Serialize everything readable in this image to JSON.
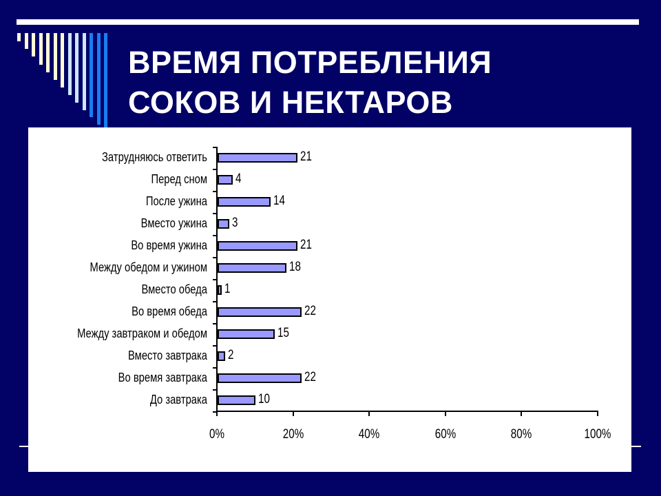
{
  "slide": {
    "title_line1": "ВРЕМЯ ПОТРЕБЛЕНИЯ",
    "title_line2": "СОКОВ И НЕКТАРОВ",
    "colors": {
      "background": "#020266",
      "title": "#ffffff",
      "bar_fill": "#9999ff",
      "bar_border": "#000000",
      "stripes_cream": "#fffbd6",
      "stripes_light_blue": "#cfe6ff",
      "stripes_blue": "#1a7df0"
    }
  },
  "chart_data": {
    "type": "bar",
    "orientation": "horizontal",
    "title": "ВРЕМЯ ПОТРЕБЛЕНИЯ СОКОВ И НЕКТАРОВ",
    "categories": [
      "Затрудняюсь ответить",
      "Перед сном",
      "После ужина",
      "Вместо ужина",
      "Во время ужина",
      "Между обедом и ужином",
      "Вместо обеда",
      "Во время обеда",
      "Между завтраком и обедом",
      "Вместо завтрака",
      "Во время завтрака",
      "До завтрака"
    ],
    "values": [
      21,
      4,
      14,
      3,
      21,
      18,
      1,
      22,
      15,
      2,
      22,
      10
    ],
    "value_labels": [
      "21",
      "4",
      "14",
      "3",
      "21",
      "18",
      "1",
      "22",
      "15",
      "2",
      "22",
      "10"
    ],
    "xlabel": "",
    "ylabel": "",
    "xticks": [
      "0%",
      "20%",
      "40%",
      "60%",
      "80%",
      "100%"
    ],
    "xlim": [
      0,
      100
    ],
    "grid": false,
    "legend": null,
    "data_labels": true
  }
}
